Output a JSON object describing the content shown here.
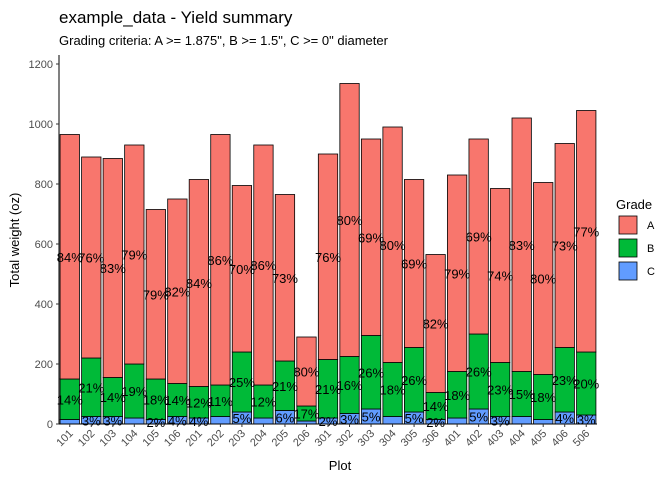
{
  "chart_data": {
    "type": "bar",
    "stacked": true,
    "title": "example_data - Yield summary",
    "subtitle": "Grading criteria: A >= 1.875\", B >= 1.5\", C >= 0\" diameter",
    "xlabel": "Plot",
    "ylabel": "Total weight (oz)",
    "ylim": [
      0,
      1230
    ],
    "yticks": [
      0,
      200,
      400,
      600,
      800,
      1000,
      1200
    ],
    "grid": false,
    "legend": {
      "title": "Grade",
      "position": "right",
      "entries": [
        {
          "label": "A",
          "color": "#F8766D"
        },
        {
          "label": "B",
          "color": "#00BA38"
        },
        {
          "label": "C",
          "color": "#619CFF"
        }
      ]
    },
    "categories": [
      "101",
      "102",
      "103",
      "104",
      "105",
      "106",
      "201",
      "202",
      "203",
      "204",
      "205",
      "206",
      "301",
      "302",
      "303",
      "304",
      "305",
      "306",
      "401",
      "402",
      "403",
      "404",
      "405",
      "406",
      "506"
    ],
    "series": [
      {
        "name": "C",
        "color": "#619CFF",
        "values": [
          15,
          25,
          25,
          20,
          15,
          25,
          20,
          25,
          40,
          20,
          45,
          10,
          20,
          35,
          50,
          25,
          40,
          15,
          20,
          50,
          25,
          25,
          15,
          40,
          30
        ],
        "labels": [
          "",
          "3%",
          "3%",
          "",
          "2%",
          "4%",
          "4%",
          "",
          "5%",
          "",
          "6%",
          "",
          "2%",
          "3%",
          "5%",
          "",
          "5%",
          "2%",
          "",
          "5%",
          "3%",
          "",
          "",
          "4%",
          "3%"
        ]
      },
      {
        "name": "B",
        "color": "#00BA38",
        "values": [
          135,
          195,
          130,
          180,
          135,
          110,
          105,
          105,
          200,
          110,
          165,
          50,
          195,
          190,
          245,
          180,
          215,
          90,
          155,
          250,
          180,
          150,
          150,
          215,
          210
        ],
        "labels": [
          "14%",
          "21%",
          "14%",
          "19%",
          "18%",
          "14%",
          "12%",
          "11%",
          "25%",
          "12%",
          "21%",
          "17%",
          "21%",
          "16%",
          "26%",
          "18%",
          "26%",
          "14%",
          "18%",
          "26%",
          "23%",
          "15%",
          "18%",
          "23%",
          "20%"
        ]
      },
      {
        "name": "A",
        "color": "#F8766D",
        "values": [
          815,
          670,
          730,
          730,
          565,
          615,
          690,
          835,
          555,
          800,
          555,
          230,
          685,
          910,
          655,
          785,
          560,
          460,
          655,
          650,
          580,
          845,
          640,
          680,
          805
        ],
        "labels": [
          "84%",
          "76%",
          "83%",
          "79%",
          "79%",
          "82%",
          "84%",
          "86%",
          "70%",
          "86%",
          "73%",
          "80%",
          "76%",
          "80%",
          "69%",
          "80%",
          "69%",
          "82%",
          "79%",
          "69%",
          "74%",
          "83%",
          "80%",
          "73%",
          "77%"
        ]
      }
    ]
  }
}
